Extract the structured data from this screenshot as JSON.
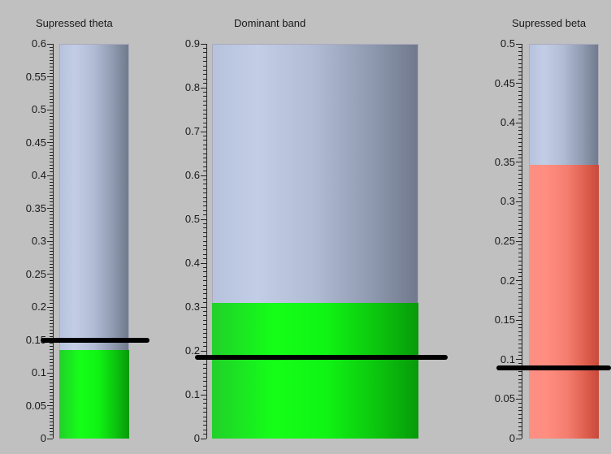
{
  "gauges": [
    {
      "title": "Supressed theta",
      "ticks": [
        "0",
        "0.05",
        "0.1",
        "0.15",
        "0.2",
        "0.25",
        "0.3",
        "0.35",
        "0.4",
        "0.45",
        "0.5",
        "0.55",
        "0.6"
      ],
      "max": 0.6,
      "level": 0.135,
      "threshold": 0.15,
      "fill_color": "#10f414"
    },
    {
      "title": "Dominant band",
      "ticks": [
        "0",
        "0.1",
        "0.2",
        "0.3",
        "0.4",
        "0.5",
        "0.6",
        "0.7",
        "0.8",
        "0.9"
      ],
      "max": 0.9,
      "level": 0.31,
      "threshold": 0.185,
      "fill_color": "#10f414"
    },
    {
      "title": "Supressed beta",
      "ticks": [
        "0",
        "0.05",
        "0.1",
        "0.15",
        "0.2",
        "0.25",
        "0.3",
        "0.35",
        "0.4",
        "0.45",
        "0.5"
      ],
      "max": 0.5,
      "level": 0.347,
      "threshold": 0.09,
      "fill_color": "#f47d6f"
    }
  ]
}
